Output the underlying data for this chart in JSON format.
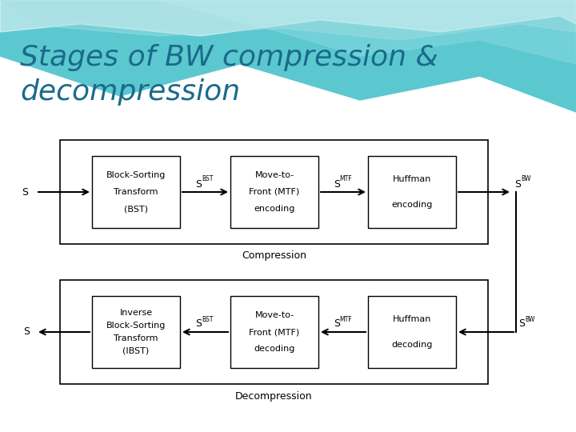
{
  "title_line1": "Stages of BW compression &",
  "title_line2": "decompression",
  "title_color": "#1a6b8a",
  "bg_white": "#ffffff",
  "box_color": "#ffffff",
  "box_edge_color": "#000000",
  "compression_label": "Compression",
  "decompression_label": "Decompression",
  "comp_box_lines": [
    [
      "Block-Sorting",
      "Transform",
      "(BST)"
    ],
    [
      "Move-to-",
      "Front (MTF)",
      "encoding"
    ],
    [
      "Huffman",
      "encoding"
    ]
  ],
  "decomp_box_lines": [
    [
      "Inverse",
      "Block-Sorting",
      "Transform",
      "(IBST)"
    ],
    [
      "Move-to-",
      "Front (MTF)",
      "decoding"
    ],
    [
      "Huffman",
      "decoding"
    ]
  ],
  "font_size_title": 26,
  "font_size_box": 8,
  "font_size_label": 9,
  "font_size_s": 9,
  "font_size_sup": 5.5
}
